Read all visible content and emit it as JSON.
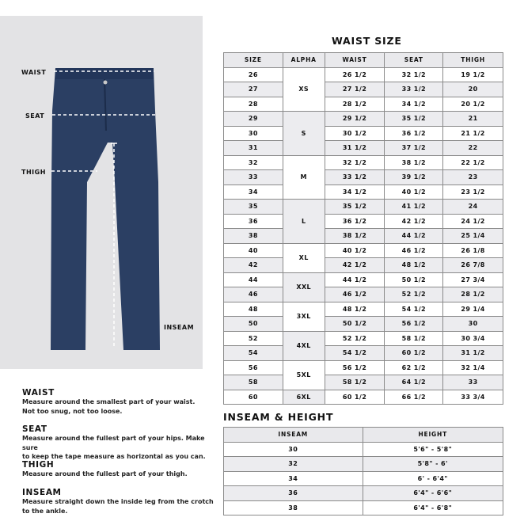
{
  "figure": {
    "labels": {
      "waist": "WAIST",
      "seat": "SEAT",
      "thigh": "THIGH",
      "inseam": "INSEAM"
    },
    "colors": {
      "panel": "#e3e3e5",
      "denim": "#2b3f63"
    }
  },
  "waist_size": {
    "title": "WAIST SIZE",
    "headers": [
      "SIZE",
      "ALPHA",
      "WAIST",
      "SEAT",
      "THIGH"
    ],
    "rows": [
      {
        "size": "26",
        "waist": "26 1/2",
        "seat": "32 1/2",
        "thigh": "19 1/2"
      },
      {
        "size": "27",
        "waist": "27 1/2",
        "seat": "33 1/2",
        "thigh": "20"
      },
      {
        "size": "28",
        "waist": "28 1/2",
        "seat": "34 1/2",
        "thigh": "20 1/2"
      },
      {
        "size": "29",
        "waist": "29 1/2",
        "seat": "35 1/2",
        "thigh": "21"
      },
      {
        "size": "30",
        "waist": "30 1/2",
        "seat": "36 1/2",
        "thigh": "21 1/2"
      },
      {
        "size": "31",
        "waist": "31 1/2",
        "seat": "37 1/2",
        "thigh": "22"
      },
      {
        "size": "32",
        "waist": "32 1/2",
        "seat": "38 1/2",
        "thigh": "22 1/2"
      },
      {
        "size": "33",
        "waist": "33 1/2",
        "seat": "39 1/2",
        "thigh": "23"
      },
      {
        "size": "34",
        "waist": "34 1/2",
        "seat": "40 1/2",
        "thigh": "23 1/2"
      },
      {
        "size": "35",
        "waist": "35 1/2",
        "seat": "41 1/2",
        "thigh": "24"
      },
      {
        "size": "36",
        "waist": "36 1/2",
        "seat": "42 1/2",
        "thigh": "24 1/2"
      },
      {
        "size": "38",
        "waist": "38 1/2",
        "seat": "44 1/2",
        "thigh": "25 1/4"
      },
      {
        "size": "40",
        "waist": "40 1/2",
        "seat": "46 1/2",
        "thigh": "26 1/8"
      },
      {
        "size": "42",
        "waist": "42 1/2",
        "seat": "48 1/2",
        "thigh": "26 7/8"
      },
      {
        "size": "44",
        "waist": "44 1/2",
        "seat": "50 1/2",
        "thigh": "27 3/4"
      },
      {
        "size": "46",
        "waist": "46 1/2",
        "seat": "52 1/2",
        "thigh": "28 1/2"
      },
      {
        "size": "48",
        "waist": "48 1/2",
        "seat": "54 1/2",
        "thigh": "29 1/4"
      },
      {
        "size": "50",
        "waist": "50 1/2",
        "seat": "56 1/2",
        "thigh": "30"
      },
      {
        "size": "52",
        "waist": "52 1/2",
        "seat": "58 1/2",
        "thigh": "30 3/4"
      },
      {
        "size": "54",
        "waist": "54 1/2",
        "seat": "60 1/2",
        "thigh": "31 1/2"
      },
      {
        "size": "56",
        "waist": "56 1/2",
        "seat": "62 1/2",
        "thigh": "32 1/4"
      },
      {
        "size": "58",
        "waist": "58 1/2",
        "seat": "64 1/2",
        "thigh": "33"
      },
      {
        "size": "60",
        "waist": "60 1/2",
        "seat": "66 1/2",
        "thigh": "33 3/4"
      }
    ],
    "alpha_groups": [
      {
        "label": "XS",
        "rows": 3
      },
      {
        "label": "S",
        "rows": 3
      },
      {
        "label": "M",
        "rows": 3
      },
      {
        "label": "L",
        "rows": 3
      },
      {
        "label": "XL",
        "rows": 2
      },
      {
        "label": "XXL",
        "rows": 2
      },
      {
        "label": "3XL",
        "rows": 2
      },
      {
        "label": "4XL",
        "rows": 2
      },
      {
        "label": "5XL",
        "rows": 2
      },
      {
        "label": "6XL",
        "rows": 1
      }
    ]
  },
  "inseam_height": {
    "title": "INSEAM & HEIGHT",
    "headers": [
      "INSEAM",
      "HEIGHT"
    ],
    "rows": [
      {
        "inseam": "30",
        "height": "5'6\" - 5'8\""
      },
      {
        "inseam": "32",
        "height": "5'8\" - 6'"
      },
      {
        "inseam": "34",
        "height": "6' - 6'4\""
      },
      {
        "inseam": "36",
        "height": "6'4\" - 6'6\""
      },
      {
        "inseam": "38",
        "height": "6'4\" - 6'8\""
      }
    ]
  },
  "guide": [
    {
      "heading": "WAIST",
      "lines": [
        "Measure around the smallest part of your waist.",
        "Not too snug, not too loose."
      ]
    },
    {
      "heading": "SEAT",
      "lines": [
        "Measure around the fullest part of your hips. Make sure",
        "to keep the tape measure as horizontal as you can."
      ]
    },
    {
      "heading": "THIGH",
      "lines": [
        "Measure around the fullest part of your thigh."
      ]
    },
    {
      "heading": "INSEAM",
      "lines": [
        "Measure straight down the inside leg from the crotch",
        "to the ankle."
      ]
    }
  ]
}
